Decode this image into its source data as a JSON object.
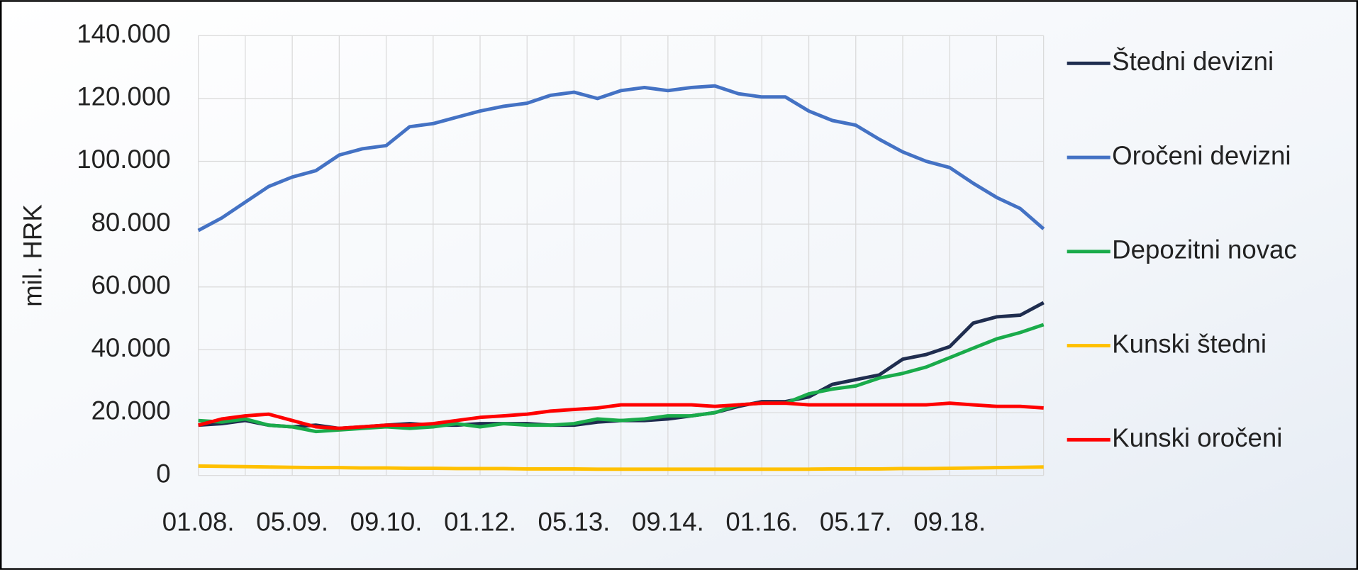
{
  "chart_data": {
    "type": "line",
    "y_label": "mil. HRK",
    "categories": [
      "01.08.",
      null,
      null,
      null,
      "05.09.",
      null,
      null,
      null,
      "09.10.",
      null,
      null,
      null,
      "01.12.",
      null,
      null,
      null,
      "05.13.",
      null,
      null,
      null,
      "09.14.",
      null,
      null,
      null,
      "01.16.",
      null,
      null,
      null,
      "05.17.",
      null,
      null,
      null,
      "09.18.",
      null,
      null,
      null,
      null
    ],
    "ylim": [
      0,
      140000
    ],
    "yticks": [
      0,
      {
        "value": 20000,
        "label": "20.000"
      },
      {
        "value": 40000,
        "label": "40.000"
      },
      {
        "value": 60000,
        "label": "60.000"
      },
      {
        "value": 80000,
        "label": "80.000"
      },
      {
        "value": 100000,
        "label": "100.000"
      },
      {
        "value": 120000,
        "label": "120.000"
      },
      {
        "value": 140000,
        "label": "140.000"
      }
    ],
    "grid": true,
    "legend": "right",
    "series": [
      {
        "name": "Štedni devizni",
        "color": "#1f2d4f",
        "values": [
          16000,
          16500,
          17500,
          16000,
          15500,
          16000,
          15000,
          15500,
          16000,
          16500,
          16000,
          16000,
          16500,
          16500,
          16500,
          16000,
          16000,
          17000,
          17500,
          17500,
          18000,
          19000,
          20000,
          22000,
          23500,
          23500,
          25000,
          29000,
          30500,
          32000,
          37000,
          38500,
          41000,
          48500,
          50500,
          51000,
          55000
        ]
      },
      {
        "name": "Oročeni devizni",
        "color": "#4472c4",
        "values": [
          78000,
          82000,
          87000,
          92000,
          95000,
          97000,
          102000,
          104000,
          105000,
          111000,
          112000,
          114000,
          116000,
          117500,
          118500,
          121000,
          122000,
          120000,
          122500,
          123500,
          122500,
          123500,
          124000,
          121500,
          120500,
          120500,
          116000,
          113000,
          111500,
          107000,
          103000,
          100000,
          98000,
          93000,
          88500,
          85000,
          78500
        ]
      },
      {
        "name": "Depozitni novac",
        "color": "#1aab4b",
        "values": [
          17500,
          17000,
          18000,
          16000,
          15500,
          14000,
          14500,
          15000,
          15500,
          15000,
          15500,
          16500,
          15500,
          16500,
          16000,
          16000,
          16500,
          18000,
          17500,
          18000,
          19000,
          19000,
          20000,
          22500,
          23000,
          23000,
          26000,
          27500,
          28500,
          31000,
          32500,
          34500,
          37500,
          40500,
          43500,
          45500,
          48000
        ]
      },
      {
        "name": "Kunski štedni",
        "color": "#ffc000",
        "values": [
          3000,
          2900,
          2800,
          2700,
          2600,
          2500,
          2500,
          2400,
          2400,
          2300,
          2300,
          2200,
          2200,
          2200,
          2100,
          2100,
          2100,
          2000,
          2000,
          2000,
          2000,
          2000,
          2000,
          2000,
          2000,
          2000,
          2000,
          2100,
          2100,
          2100,
          2200,
          2200,
          2300,
          2400,
          2500,
          2600,
          2700
        ]
      },
      {
        "name": "Kunski oročeni",
        "color": "#ff0000",
        "values": [
          16000,
          18000,
          19000,
          19500,
          17500,
          15500,
          15000,
          15500,
          16000,
          16000,
          16500,
          17500,
          18500,
          19000,
          19500,
          20500,
          21000,
          21500,
          22500,
          22500,
          22500,
          22500,
          22000,
          22500,
          23000,
          23000,
          22500,
          22500,
          22500,
          22500,
          22500,
          22500,
          23000,
          22500,
          22000,
          22000,
          21500
        ]
      }
    ]
  }
}
